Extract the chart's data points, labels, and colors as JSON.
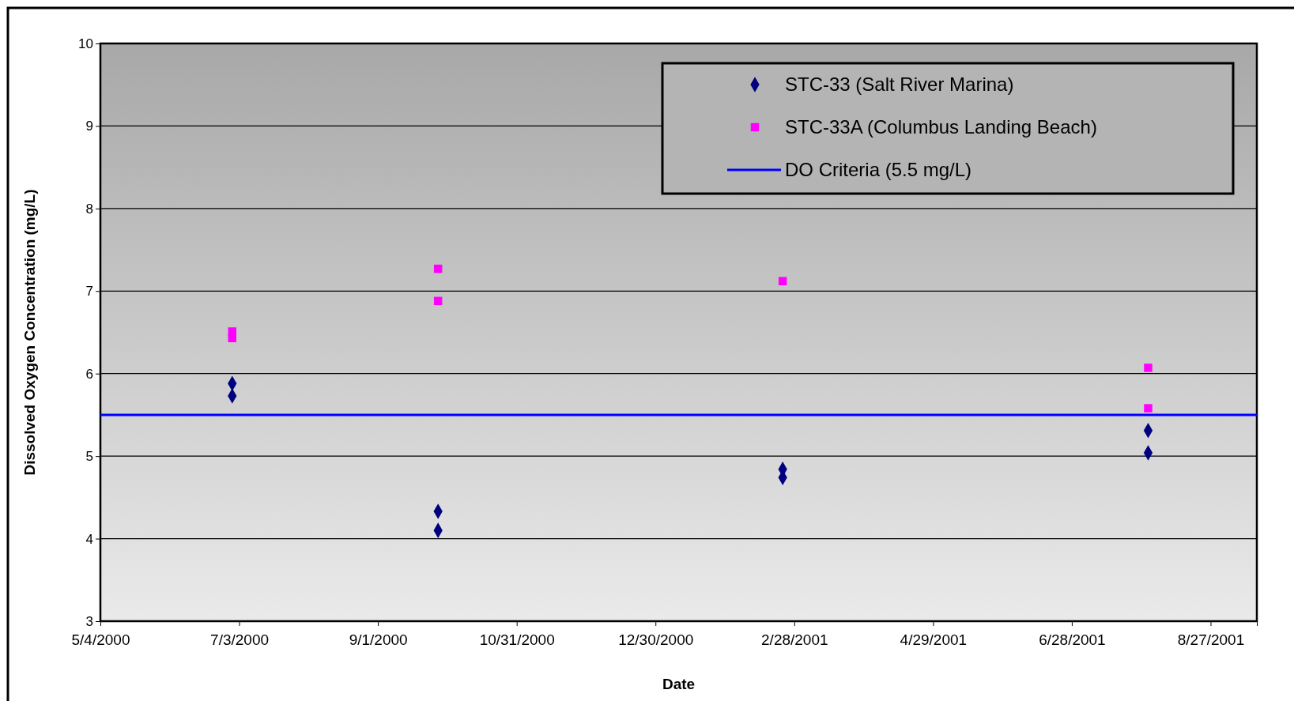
{
  "chart_data": {
    "type": "scatter",
    "xlabel": "Date",
    "ylabel": "Dissolved Oxygen Concentration (mg/L)",
    "xlim": [
      "2000-05-04",
      "2001-09-16"
    ],
    "xticks": [
      {
        "value": "2000-05-04",
        "label": "5/4/2000"
      },
      {
        "value": "2000-07-03",
        "label": "7/3/2000"
      },
      {
        "value": "2000-09-01",
        "label": "9/1/2000"
      },
      {
        "value": "2000-10-31",
        "label": "10/31/2000"
      },
      {
        "value": "2000-12-30",
        "label": "12/30/2000"
      },
      {
        "value": "2001-02-28",
        "label": "2/28/2001"
      },
      {
        "value": "2001-04-29",
        "label": "4/29/2001"
      },
      {
        "value": "2001-06-28",
        "label": "6/28/2001"
      },
      {
        "value": "2001-08-27",
        "label": "8/27/2001"
      }
    ],
    "ylim": [
      3,
      10
    ],
    "yticks": [
      3,
      4,
      5,
      6,
      7,
      8,
      9,
      10
    ],
    "grid": "y",
    "legend": "top right",
    "series": [
      {
        "name": "STC-33 (Salt River Marina)",
        "color": "#000080",
        "marker": "diamond",
        "x": [
          "2000-06-30",
          "2000-06-30",
          "2000-09-27",
          "2000-09-27",
          "2001-02-23",
          "2001-02-23",
          "2001-07-31",
          "2001-07-31"
        ],
        "values": [
          5.88,
          5.73,
          4.33,
          4.1,
          4.84,
          4.74,
          5.31,
          5.04
        ]
      },
      {
        "name": "STC-33A (Columbus Landing Beach)",
        "color": "#ff00ff",
        "marker": "square",
        "x": [
          "2000-06-30",
          "2000-06-30",
          "2000-09-27",
          "2000-09-27",
          "2001-02-23",
          "2001-07-31",
          "2001-07-31"
        ],
        "values": [
          6.51,
          6.43,
          7.27,
          6.88,
          7.12,
          6.07,
          5.58
        ]
      }
    ],
    "ref_lines": [
      {
        "axis": "y",
        "value": 5.5,
        "label": "DO Criteria (5.5 mg/L)",
        "color": "#0000ff",
        "line_style": "solid"
      }
    ]
  }
}
